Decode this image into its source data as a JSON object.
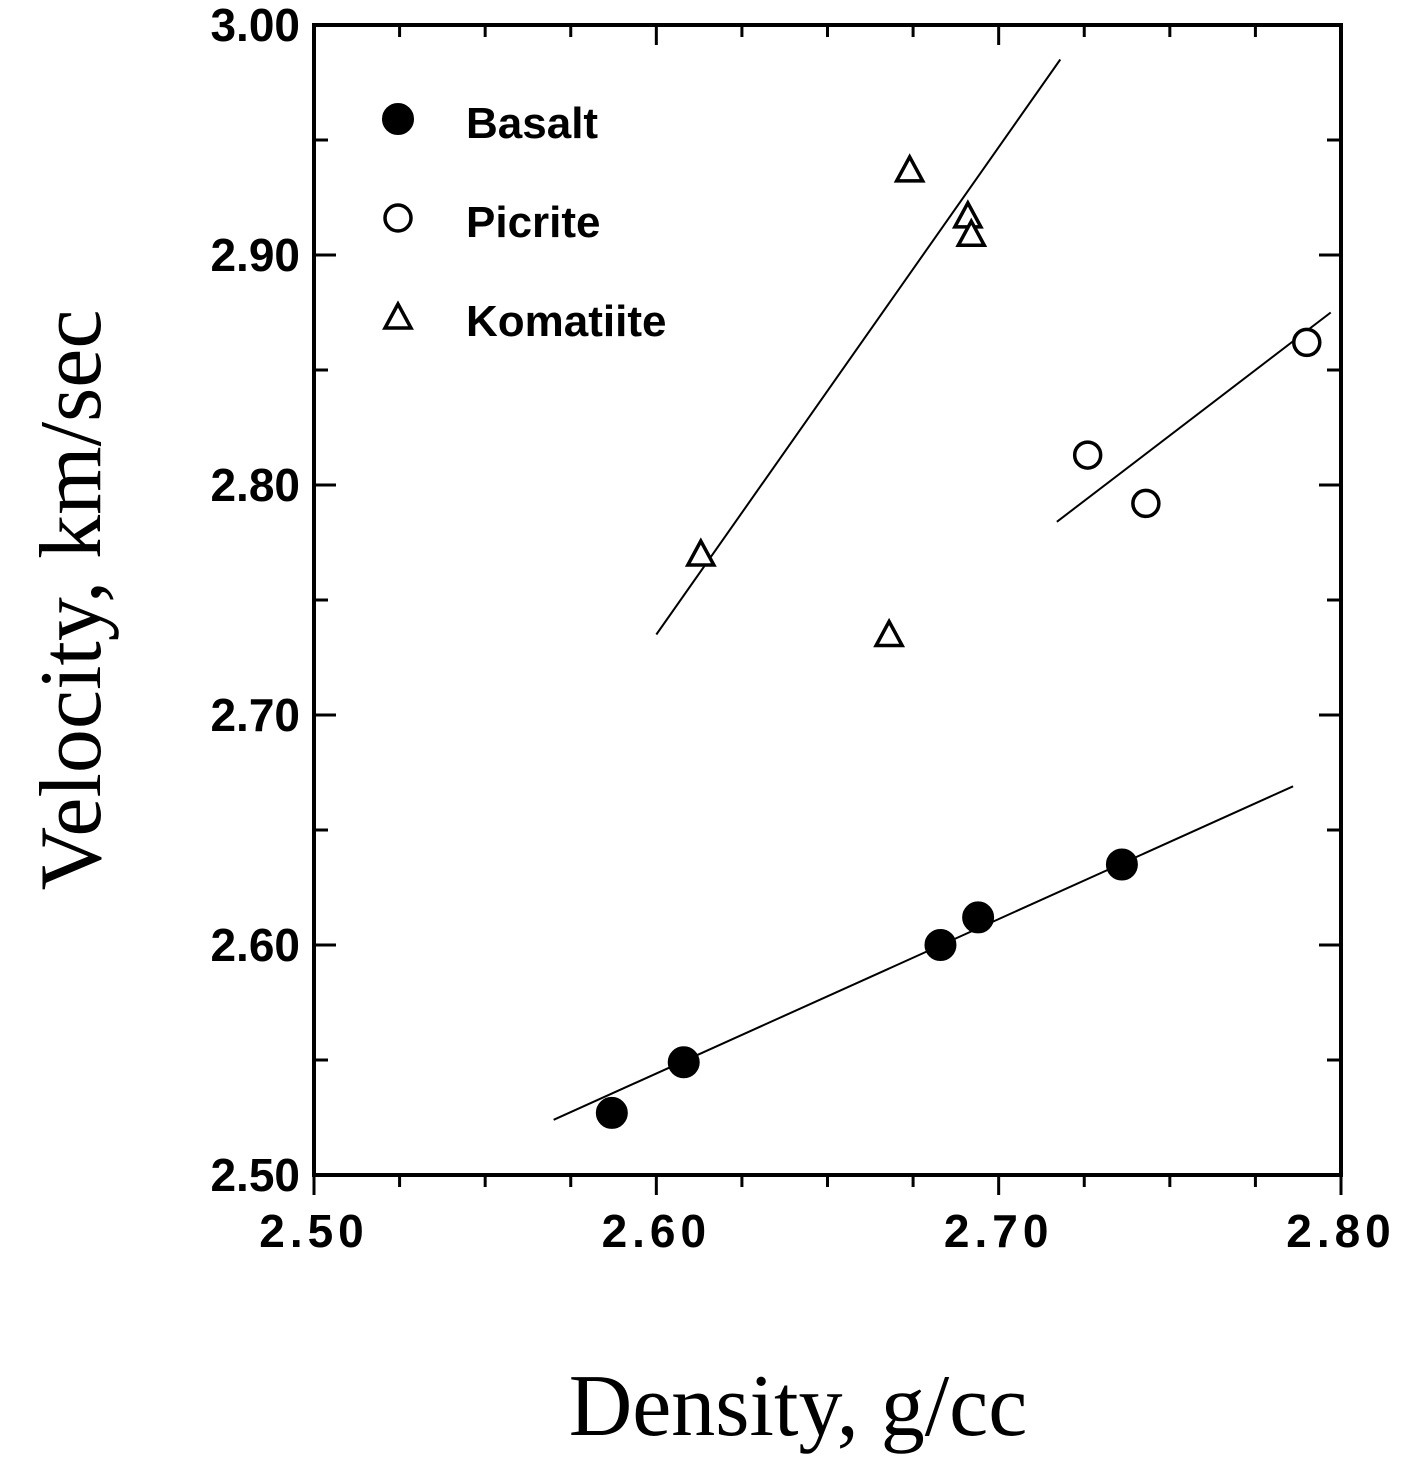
{
  "chart_data": {
    "type": "scatter",
    "xlabel": "Density, g/cc",
    "ylabel": "Velocity, km/sec",
    "xlim": [
      2.5,
      2.8
    ],
    "ylim": [
      2.5,
      3.0
    ],
    "x_ticks": [
      2.5,
      2.6,
      2.7,
      2.8
    ],
    "x_tick_labels": [
      "2.50",
      "2.60",
      "2.70",
      "2.80"
    ],
    "y_ticks": [
      2.5,
      2.6,
      2.7,
      2.8,
      2.9,
      3.0
    ],
    "y_tick_labels": [
      "2.50",
      "2.60",
      "2.70",
      "2.80",
      "2.90",
      "3.00"
    ],
    "grid": false,
    "legend_position": "top-left",
    "series": [
      {
        "name": "Basalt",
        "marker": "filled-circle",
        "points": [
          [
            2.587,
            2.527
          ],
          [
            2.608,
            2.549
          ],
          [
            2.683,
            2.6
          ],
          [
            2.694,
            2.612
          ],
          [
            2.736,
            2.635
          ]
        ],
        "fit_line": [
          [
            2.57,
            2.524
          ],
          [
            2.786,
            2.669
          ]
        ]
      },
      {
        "name": "Picrite",
        "marker": "open-circle",
        "points": [
          [
            2.726,
            2.813
          ],
          [
            2.743,
            2.792
          ],
          [
            2.79,
            2.862
          ]
        ],
        "fit_line": [
          [
            2.717,
            2.784
          ],
          [
            2.797,
            2.875
          ]
        ]
      },
      {
        "name": "Komatiite",
        "marker": "open-triangle",
        "points": [
          [
            2.613,
            2.77
          ],
          [
            2.668,
            2.735
          ],
          [
            2.674,
            2.937
          ],
          [
            2.691,
            2.917
          ],
          [
            2.692,
            2.909
          ]
        ],
        "fit_line": [
          [
            2.6,
            2.735
          ],
          [
            2.718,
            2.985
          ]
        ]
      }
    ]
  }
}
